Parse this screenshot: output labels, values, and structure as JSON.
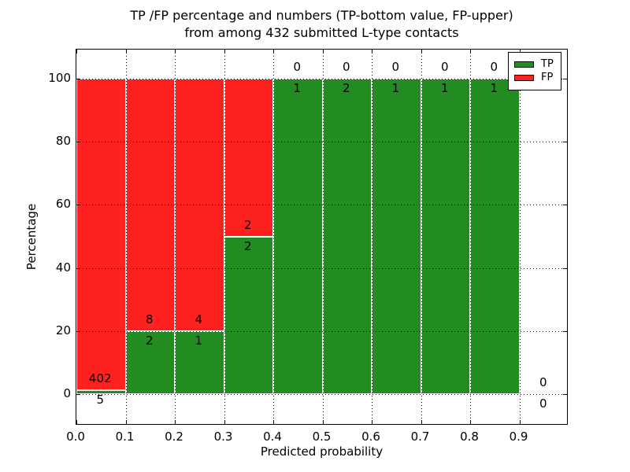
{
  "figure": {
    "title_line1": "TP /FP percentage and numbers (TP-bottom value, FP-upper)",
    "title_line2": "from among 432 submitted L-type contacts"
  },
  "chart_data": {
    "type": "bar",
    "stacked": true,
    "normalized_to_percent": true,
    "title": "TP /FP percentage and numbers (TP-bottom value, FP-upper) from among 432 submitted L-type contacts",
    "xlabel": "Predicted probability",
    "ylabel": "Percentage",
    "total_submitted_contacts": 432,
    "bin_width": 0.1,
    "bin_edges": [
      0.0,
      0.1,
      0.2,
      0.3,
      0.4,
      0.5,
      0.6,
      0.7,
      0.8,
      0.9,
      1.0
    ],
    "categories": [
      "0.0-0.1",
      "0.1-0.2",
      "0.2-0.3",
      "0.3-0.4",
      "0.4-0.5",
      "0.5-0.6",
      "0.6-0.7",
      "0.7-0.8",
      "0.8-0.9",
      "0.9-1.0"
    ],
    "series": [
      {
        "name": "TP",
        "color": "#228b22",
        "values": [
          5,
          2,
          1,
          2,
          1,
          2,
          1,
          1,
          1,
          0
        ]
      },
      {
        "name": "FP",
        "color": "#ff2020",
        "values": [
          402,
          8,
          4,
          2,
          0,
          0,
          0,
          0,
          0,
          0
        ]
      }
    ],
    "tp_percent_by_bin": [
      1.23,
      20,
      20,
      50,
      100,
      100,
      100,
      100,
      100,
      null
    ],
    "x_tick_labels": [
      "0.0",
      "0.1",
      "0.2",
      "0.3",
      "0.4",
      "0.5",
      "0.6",
      "0.7",
      "0.8",
      "0.9"
    ],
    "y_ticks": [
      0,
      20,
      40,
      60,
      80,
      100
    ],
    "xlim": [
      0.0,
      1.0
    ],
    "ylim": [
      -10,
      109
    ],
    "grid": "dotted black, drawn above bars",
    "bar_edge_color": "#ffffff",
    "legend_position": "upper right",
    "legend": [
      {
        "label": "TP",
        "color": "#228b22"
      },
      {
        "label": "FP",
        "color": "#ff2020"
      }
    ]
  }
}
